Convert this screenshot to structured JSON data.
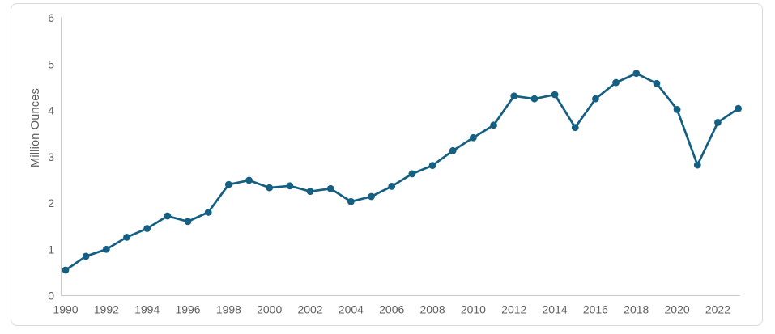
{
  "chart_data": {
    "type": "line",
    "title": "",
    "xlabel": "",
    "ylabel": "Million Ounces",
    "ylim": [
      0,
      6
    ],
    "yticks": [
      0,
      1,
      2,
      3,
      4,
      5,
      6
    ],
    "xtick_labels": [
      "1990",
      "1992",
      "1994",
      "1996",
      "1998",
      "2000",
      "2002",
      "2004",
      "2006",
      "2008",
      "2010",
      "2012",
      "2014",
      "2016",
      "2018",
      "2020",
      "2022"
    ],
    "x": [
      1990,
      1991,
      1992,
      1993,
      1994,
      1995,
      1996,
      1997,
      1998,
      1999,
      2000,
      2001,
      2002,
      2003,
      2004,
      2005,
      2006,
      2007,
      2008,
      2009,
      2010,
      2011,
      2012,
      2013,
      2014,
      2015,
      2016,
      2017,
      2018,
      2019,
      2020,
      2021,
      2022,
      2023
    ],
    "series": [
      {
        "name": "Million Ounces",
        "values": [
          0.55,
          0.85,
          1.0,
          1.26,
          1.45,
          1.72,
          1.6,
          1.8,
          2.4,
          2.49,
          2.33,
          2.37,
          2.25,
          2.31,
          2.03,
          2.14,
          2.36,
          2.63,
          2.81,
          3.13,
          3.41,
          3.68,
          4.31,
          4.25,
          4.34,
          3.63,
          4.25,
          4.6,
          4.8,
          4.58,
          4.02,
          2.82,
          3.74,
          4.04
        ],
        "marker": "circle"
      }
    ],
    "grid": false,
    "legend": false
  },
  "colors": {
    "line": "#156082",
    "axis_line": "#c9c9c9",
    "tick_text": "#5f5f5f",
    "frame_border": "#d9d9d9",
    "background": "#ffffff"
  }
}
